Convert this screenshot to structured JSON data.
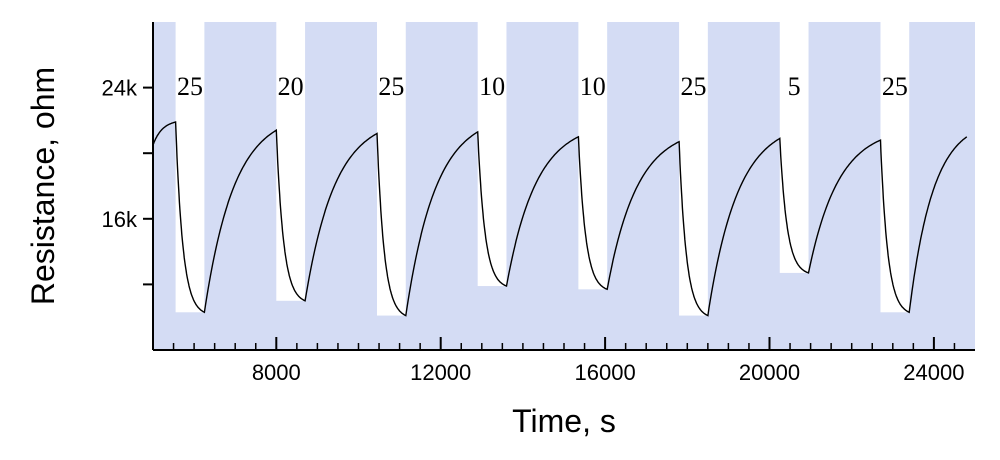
{
  "chart_data": {
    "type": "line",
    "title": "",
    "xlabel": "Time, s",
    "ylabel": "Resistance, ohm",
    "xlim": [
      5000,
      25000
    ],
    "ylim": [
      8000,
      28000
    ],
    "x_ticks": [
      8000,
      12000,
      16000,
      20000,
      24000
    ],
    "x_tick_labels": [
      "8000",
      "12000",
      "16000",
      "20000",
      "24000"
    ],
    "x_minor_step": 500,
    "y_ticks": [
      12000,
      16000,
      20000,
      24000
    ],
    "y_tick_labels": [
      "",
      "16k",
      "",
      "24k"
    ],
    "grid": false,
    "background_color": "#d4dcf4",
    "pulse_color": "#ffffff",
    "line_color": "#000000",
    "pulses": [
      {
        "start": 5550,
        "end": 6250,
        "label": "25",
        "min_r": 10300
      },
      {
        "start": 8000,
        "end": 8700,
        "label": "20",
        "min_r": 11000
      },
      {
        "start": 10450,
        "end": 11150,
        "label": "25",
        "min_r": 10100
      },
      {
        "start": 12900,
        "end": 13600,
        "label": "10",
        "min_r": 11900
      },
      {
        "start": 15350,
        "end": 16050,
        "label": "10",
        "min_r": 11700
      },
      {
        "start": 17800,
        "end": 18500,
        "label": "25",
        "min_r": 10100
      },
      {
        "start": 20250,
        "end": 20950,
        "label": "5",
        "min_r": 12700
      },
      {
        "start": 22700,
        "end": 23400,
        "label": "25",
        "min_r": 10300
      }
    ],
    "series": [
      {
        "x": [
          5000,
          5550,
          6250,
          8000,
          8700,
          10450,
          11150,
          12900,
          13600,
          15350,
          16050,
          17800,
          18500,
          20250,
          20950,
          22700,
          23400,
          24800
        ],
        "y": [
          20500,
          21900,
          10300,
          21400,
          11000,
          21200,
          10100,
          21300,
          11900,
          21000,
          11700,
          20700,
          10100,
          20900,
          12700,
          20800,
          10300,
          21000
        ]
      }
    ]
  }
}
